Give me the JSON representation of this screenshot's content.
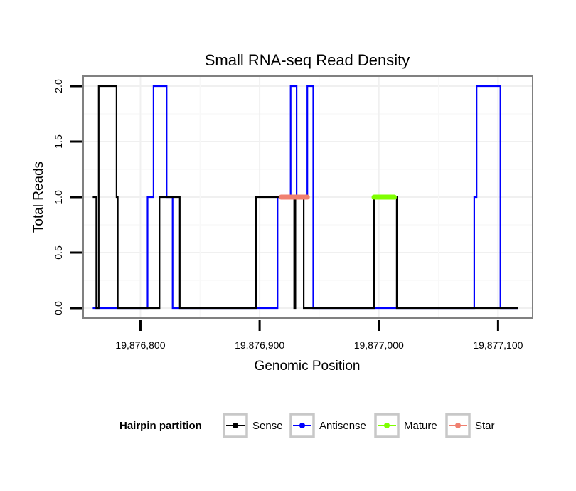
{
  "chart_data": {
    "type": "line",
    "title": "Small RNA-seq Read Density",
    "xlabel": "Genomic Position",
    "ylabel": "Total Reads",
    "xlim": [
      19876752,
      19877129
    ],
    "ylim": [
      -0.09,
      2.09
    ],
    "x_ticks": [
      19876800,
      19876900,
      19877000,
      19877100
    ],
    "x_tick_labels": [
      "19,876,800",
      "19,876,900",
      "19,877,000",
      "19,877,100"
    ],
    "y_ticks": [
      0,
      0.5,
      1,
      1.5,
      2
    ],
    "y_tick_labels": [
      "0.0",
      "0.5",
      "1.0",
      "1.5",
      "2.0"
    ],
    "grid": true,
    "legend": {
      "title": "Hairpin partition",
      "position": "bottom",
      "entries": [
        "Sense",
        "Antisense",
        "Mature",
        "Star"
      ]
    },
    "series": [
      {
        "name": "Sense",
        "color": "#000000",
        "x": [
          19876760,
          19876763,
          19876763,
          19876765,
          19876765,
          19876780,
          19876780,
          19876781,
          19876781,
          19876816,
          19876816,
          19876833,
          19876833,
          19876897,
          19876897,
          19876929,
          19876929,
          19876930,
          19876930,
          19876937,
          19876937,
          19876996,
          19876996,
          19877015,
          19877015,
          19877117
        ],
        "values": [
          1,
          1,
          0,
          0,
          2,
          2,
          1,
          1,
          0,
          0,
          1,
          1,
          0,
          0,
          1,
          1,
          0,
          0,
          1,
          1,
          0,
          0,
          1,
          1,
          0,
          0
        ]
      },
      {
        "name": "Antisense",
        "color": "#0000ff",
        "x": [
          19876760,
          19876806,
          19876806,
          19876811,
          19876811,
          19876822,
          19876822,
          19876827,
          19876827,
          19876849,
          19876849,
          19876915,
          19876915,
          19876926,
          19876926,
          19876931,
          19876931,
          19876940,
          19876940,
          19876945,
          19876945,
          19877080,
          19877080,
          19877082,
          19877082,
          19877102,
          19877102,
          19877117
        ],
        "values": [
          0,
          0,
          1,
          1,
          2,
          2,
          1,
          1,
          0,
          0,
          0,
          0,
          1,
          1,
          2,
          2,
          1,
          1,
          2,
          2,
          0,
          0,
          1,
          1,
          2,
          2,
          0,
          0
        ]
      },
      {
        "name": "Mature",
        "color": "#7fff00",
        "x": [
          19876996,
          19877013
        ],
        "values": [
          1,
          1
        ]
      },
      {
        "name": "Star",
        "color": "#f08070",
        "x": [
          19876918,
          19876940
        ],
        "values": [
          1,
          1
        ]
      }
    ]
  }
}
